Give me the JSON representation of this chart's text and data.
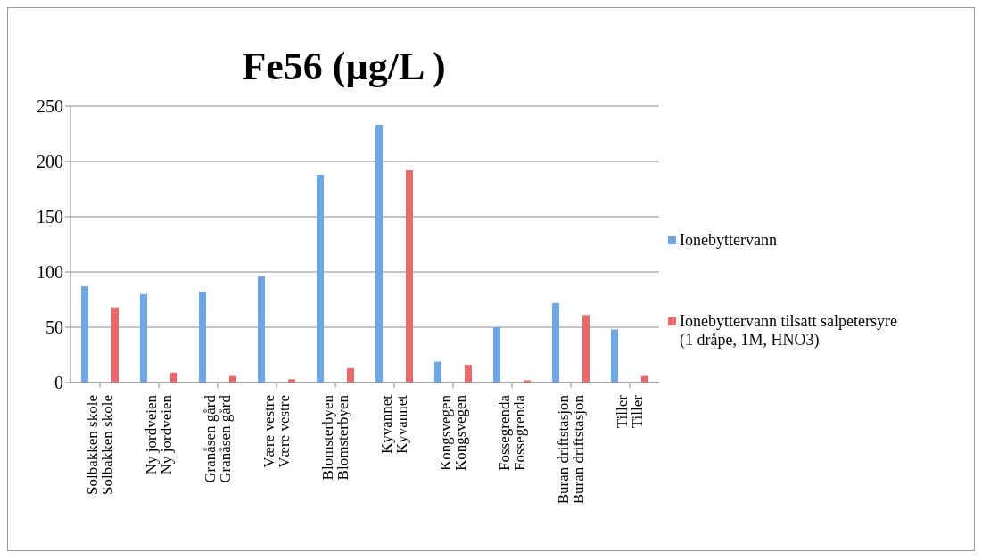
{
  "chart_data": {
    "type": "bar",
    "title": "Fe56 (µg/L )",
    "categories": [
      "Solbakken skole\nSolbakken skole",
      "Ny jordveien\nNy jordveien",
      "Granåsen gård\nGranåsen gård",
      "Være vestre\nVære vestre",
      "Blomsterbyen\nBlomsterbyen",
      "Kyvannet\nKyvannet",
      "Kongsvegen\nKongsvegen",
      "Fossegrenda\nFossegrenda",
      "Buran driftstasjon\nBuran driftstasjon",
      "Tiller\nTiller"
    ],
    "series": [
      {
        "name": "Ionebyttervann",
        "color": "#6fa6e6",
        "values": [
          87,
          80,
          82,
          96,
          188,
          233,
          19,
          50,
          72,
          48
        ]
      },
      {
        "name": "Ionebyttervann tilsatt salpetersyre (1 dråpe, 1M, HNO3)",
        "color": "#e86a6a",
        "values": [
          68,
          9,
          6,
          3,
          13,
          192,
          16,
          2,
          61,
          6
        ]
      }
    ],
    "ylim": [
      0,
      250
    ],
    "yticks": [
      0,
      50,
      100,
      150,
      200,
      250
    ],
    "grid": "y",
    "legend": "right"
  }
}
